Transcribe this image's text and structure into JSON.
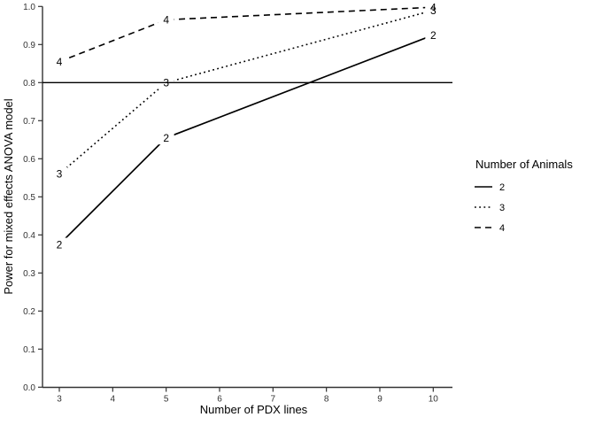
{
  "figure": {
    "background": "#ffffff",
    "line_color": "#000000",
    "axis_color": "#333333",
    "tick_label_color": "#333333",
    "title_color": "#000000"
  },
  "chart_data": {
    "type": "line",
    "title": "",
    "xlabel": "Number of PDX lines",
    "ylabel": "Power for mixed effects ANOVA model",
    "x": [
      3,
      5,
      10
    ],
    "x_ticks": [
      3,
      4,
      5,
      6,
      7,
      8,
      9,
      10
    ],
    "y_ticks": [
      0.0,
      0.1,
      0.2,
      0.3,
      0.4,
      0.5,
      0.6,
      0.7,
      0.8,
      0.9,
      1.0
    ],
    "xlim": [
      3,
      10
    ],
    "ylim": [
      0.0,
      1.0
    ],
    "grid": false,
    "reference_line_y": 0.8,
    "series": [
      {
        "name": "2",
        "style": "solid",
        "values": [
          0.375,
          0.655,
          0.925
        ]
      },
      {
        "name": "3",
        "style": "dotted",
        "values": [
          0.56,
          0.8,
          0.99
        ]
      },
      {
        "name": "4",
        "style": "dashed",
        "values": [
          0.855,
          0.965,
          0.998
        ]
      }
    ],
    "point_labels_are_series_names": true,
    "legend": {
      "position": "right",
      "title": "Number of Animals",
      "entries": [
        {
          "label": "2",
          "style": "solid"
        },
        {
          "label": "3",
          "style": "dotted"
        },
        {
          "label": "4",
          "style": "dashed"
        }
      ]
    }
  }
}
